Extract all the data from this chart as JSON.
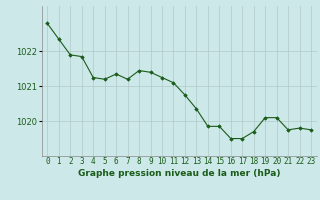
{
  "x": [
    0,
    1,
    2,
    3,
    4,
    5,
    6,
    7,
    8,
    9,
    10,
    11,
    12,
    13,
    14,
    15,
    16,
    17,
    18,
    19,
    20,
    21,
    22,
    23
  ],
  "y": [
    1022.8,
    1022.35,
    1021.9,
    1021.85,
    1021.25,
    1021.2,
    1021.35,
    1021.2,
    1021.45,
    1021.4,
    1021.25,
    1021.1,
    1020.75,
    1020.35,
    1019.85,
    1019.85,
    1019.5,
    1019.5,
    1019.7,
    1020.1,
    1020.1,
    1019.75,
    1019.8,
    1019.75
  ],
  "line_color": "#1a5c1a",
  "marker": "D",
  "marker_size": 1.8,
  "bg_color": "#cce8e8",
  "grid_color": "#b0c8c8",
  "axis_label_color": "#1a5c1a",
  "tick_label_color": "#1a5c1a",
  "xlabel": "Graphe pression niveau de la mer (hPa)",
  "xlabel_fontsize": 6.5,
  "yticks": [
    1020,
    1021,
    1022
  ],
  "ylim": [
    1019.0,
    1023.3
  ],
  "xlim": [
    -0.5,
    23.5
  ],
  "xticks": [
    0,
    1,
    2,
    3,
    4,
    5,
    6,
    7,
    8,
    9,
    10,
    11,
    12,
    13,
    14,
    15,
    16,
    17,
    18,
    19,
    20,
    21,
    22,
    23
  ],
  "tick_fontsize": 5.5,
  "ytick_fontsize": 6
}
